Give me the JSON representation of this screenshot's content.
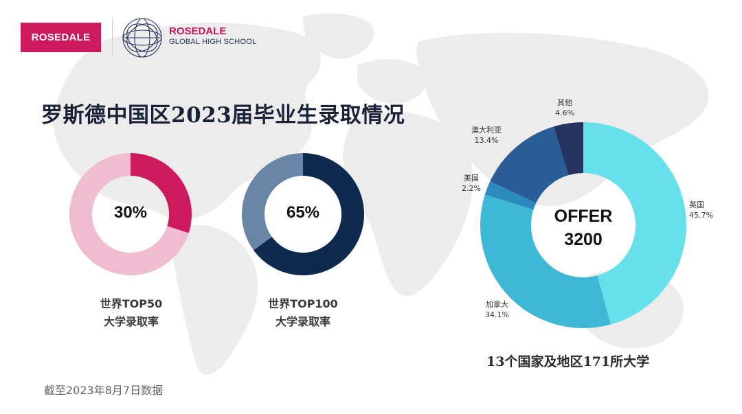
{
  "header": {
    "logo_text": "ROSEDALE",
    "school_name": "ROSEDALE",
    "school_subtitle": "GLOBAL HIGH SCHOOL"
  },
  "title": "罗斯德中国区2023届毕业生录取情况",
  "colors": {
    "brand": "#cc1a5c",
    "navy": "#0f2a4f",
    "slate": "#6a86a6",
    "pink_light": "#f0bcd0",
    "cyan": "#66e0ea"
  },
  "chart_data": [
    {
      "type": "pie",
      "center_label": "30%",
      "caption": [
        "世界TOP50",
        "大学录取率"
      ],
      "slices": [
        {
          "label": "",
          "value": 30,
          "color": "#cc1a5c"
        },
        {
          "label": "",
          "value": 70,
          "color": "#f0bcd0"
        }
      ]
    },
    {
      "type": "pie",
      "center_label": "65%",
      "caption": [
        "世界TOP100",
        "大学录取率"
      ],
      "slices": [
        {
          "label": "",
          "value": 65,
          "color": "#0f2a4f"
        },
        {
          "label": "",
          "value": 35,
          "color": "#6a86a6"
        }
      ]
    },
    {
      "type": "pie",
      "center_label": [
        "OFFER",
        "3200"
      ],
      "footer": "13个国家及地区171所大学",
      "slices": [
        {
          "name": "英国",
          "pct": "45.7%",
          "value": 45.7,
          "color": "#66e0ea"
        },
        {
          "name": "加拿大",
          "pct": "34.1%",
          "value": 34.1,
          "color": "#3fb8d6"
        },
        {
          "name": "美国",
          "pct": "2.2%",
          "value": 2.2,
          "color": "#2b8bbd"
        },
        {
          "name": "澳大利亚",
          "pct": "13.4%",
          "value": 13.4,
          "color": "#2a5c96"
        },
        {
          "name": "其他",
          "pct": "4.6%",
          "value": 4.6,
          "color": "#24335f"
        }
      ]
    }
  ],
  "date_note": "截至2023年8月7日数据"
}
